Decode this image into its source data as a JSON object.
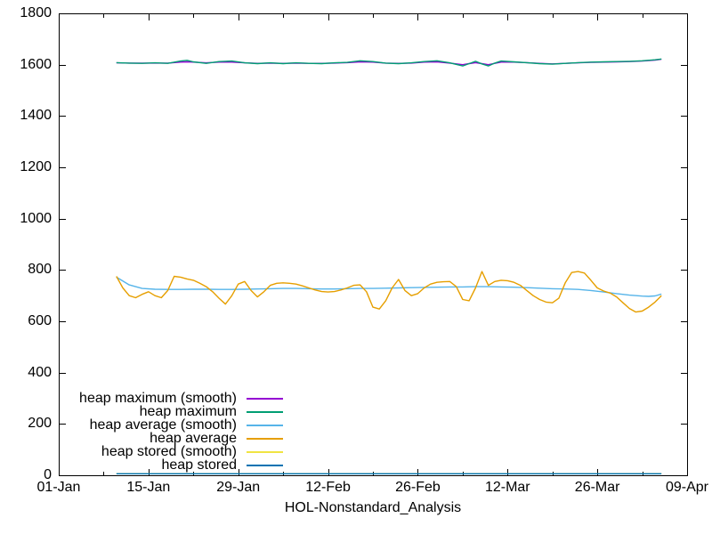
{
  "chart_data": {
    "type": "line",
    "title": "",
    "xlabel": "HOL-Nonstandard_Analysis",
    "ylabel": "",
    "ylim": [
      0,
      1800
    ],
    "y_ticks": [
      0,
      200,
      400,
      600,
      800,
      1000,
      1200,
      1400,
      1600,
      1800
    ],
    "x_range_days": [
      0,
      98
    ],
    "x_major_ticks": [
      {
        "day": 0,
        "label": "01-Jan"
      },
      {
        "day": 14,
        "label": "15-Jan"
      },
      {
        "day": 28,
        "label": "29-Jan"
      },
      {
        "day": 42,
        "label": "12-Feb"
      },
      {
        "day": 56,
        "label": "26-Feb"
      },
      {
        "day": 70,
        "label": "12-Mar"
      },
      {
        "day": 84,
        "label": "26-Mar"
      },
      {
        "day": 98,
        "label": "09-Apr"
      }
    ],
    "x_minor_tick_days": [
      7,
      21,
      35,
      49,
      63,
      77,
      91
    ],
    "grid": false,
    "axis_color": "#000000",
    "background_color": "#ffffff",
    "legend_position": "inside-bottom-left",
    "series": [
      {
        "name": "heap maximum (smooth)",
        "color": "#9400D3",
        "days": [
          9,
          11,
          13,
          15,
          17,
          19,
          20,
          21,
          23,
          25,
          27,
          29,
          31,
          33,
          35,
          37,
          39,
          41,
          43,
          45,
          47,
          49,
          51,
          53,
          55,
          57,
          59,
          61,
          63,
          64,
          65,
          66,
          67,
          68,
          69,
          71,
          73,
          75,
          77,
          79,
          81,
          83,
          85,
          87,
          89,
          91,
          93,
          94
        ],
        "values": [
          1607,
          1606,
          1606,
          1606,
          1606,
          1610,
          1611,
          1610,
          1607,
          1610,
          1610,
          1607,
          1605,
          1606,
          1605,
          1606,
          1605,
          1605,
          1606,
          1608,
          1611,
          1610,
          1606,
          1605,
          1606,
          1610,
          1611,
          1606,
          1600,
          1604,
          1608,
          1604,
          1600,
          1605,
          1610,
          1610,
          1608,
          1605,
          1603,
          1605,
          1607,
          1609,
          1610,
          1611,
          1612,
          1614,
          1618,
          1621
        ]
      },
      {
        "name": "heap maximum",
        "color": "#009E73",
        "days": [
          9,
          11,
          13,
          15,
          17,
          19,
          20,
          21,
          23,
          25,
          27,
          29,
          31,
          33,
          35,
          37,
          39,
          41,
          43,
          45,
          47,
          49,
          51,
          53,
          55,
          57,
          59,
          61,
          63,
          64,
          65,
          66,
          67,
          68,
          69,
          71,
          73,
          75,
          77,
          79,
          81,
          83,
          85,
          87,
          89,
          91,
          93,
          94
        ],
        "values": [
          1608,
          1606,
          1605,
          1607,
          1605,
          1614,
          1617,
          1611,
          1605,
          1612,
          1614,
          1607,
          1604,
          1607,
          1604,
          1607,
          1605,
          1604,
          1607,
          1609,
          1615,
          1612,
          1606,
          1604,
          1607,
          1612,
          1615,
          1607,
          1595,
          1604,
          1613,
          1603,
          1595,
          1606,
          1614,
          1611,
          1608,
          1604,
          1602,
          1605,
          1608,
          1610,
          1611,
          1612,
          1613,
          1615,
          1619,
          1622
        ]
      },
      {
        "name": "heap average (smooth)",
        "color": "#56B4E9",
        "days": [
          9,
          11,
          13,
          15,
          17,
          19,
          21,
          23,
          25,
          27,
          29,
          31,
          33,
          35,
          37,
          39,
          41,
          43,
          45,
          47,
          49,
          51,
          53,
          55,
          57,
          59,
          61,
          63,
          65,
          67,
          69,
          71,
          73,
          75,
          77,
          79,
          81,
          83,
          85,
          87,
          89,
          91,
          92,
          93,
          94
        ],
        "values": [
          772,
          742,
          728,
          725,
          724,
          724,
          725,
          725,
          724,
          724,
          725,
          726,
          727,
          728,
          728,
          727,
          726,
          726,
          727,
          728,
          728,
          729,
          730,
          731,
          732,
          733,
          734,
          734,
          735,
          735,
          734,
          733,
          731,
          729,
          727,
          726,
          724,
          720,
          714,
          708,
          702,
          698,
          697,
          699,
          706
        ]
      },
      {
        "name": "heap average",
        "color": "#E69F00",
        "days": [
          9,
          10,
          11,
          12,
          13,
          14,
          15,
          16,
          17,
          18,
          19,
          20,
          21,
          22,
          23,
          24,
          25,
          26,
          27,
          28,
          29,
          30,
          31,
          32,
          33,
          34,
          35,
          36,
          37,
          38,
          39,
          40,
          41,
          42,
          43,
          44,
          45,
          46,
          47,
          48,
          49,
          50,
          51,
          52,
          53,
          54,
          55,
          56,
          57,
          58,
          59,
          60,
          61,
          62,
          63,
          64,
          65,
          66,
          67,
          68,
          69,
          70,
          71,
          72,
          73,
          74,
          75,
          76,
          77,
          78,
          79,
          80,
          81,
          82,
          83,
          84,
          85,
          86,
          87,
          88,
          89,
          90,
          91,
          92,
          93,
          94
        ],
        "values": [
          775,
          730,
          700,
          692,
          705,
          715,
          700,
          692,
          720,
          775,
          772,
          765,
          760,
          748,
          735,
          715,
          690,
          667,
          700,
          745,
          755,
          720,
          695,
          715,
          740,
          748,
          750,
          748,
          745,
          738,
          730,
          722,
          716,
          714,
          716,
          722,
          730,
          740,
          742,
          715,
          655,
          648,
          680,
          730,
          763,
          720,
          700,
          708,
          730,
          745,
          752,
          754,
          755,
          735,
          685,
          680,
          730,
          794,
          740,
          755,
          760,
          758,
          752,
          740,
          720,
          700,
          685,
          675,
          672,
          690,
          750,
          790,
          794,
          788,
          760,
          730,
          718,
          710,
          695,
          672,
          650,
          636,
          640,
          655,
          675,
          700
        ]
      },
      {
        "name": "heap stored (smooth)",
        "color": "#F0E442",
        "days": [
          9,
          94
        ],
        "values": [
          6,
          6
        ]
      },
      {
        "name": "heap stored",
        "color": "#0072B2",
        "days": [
          9,
          94
        ],
        "values": [
          6,
          6
        ]
      }
    ]
  }
}
